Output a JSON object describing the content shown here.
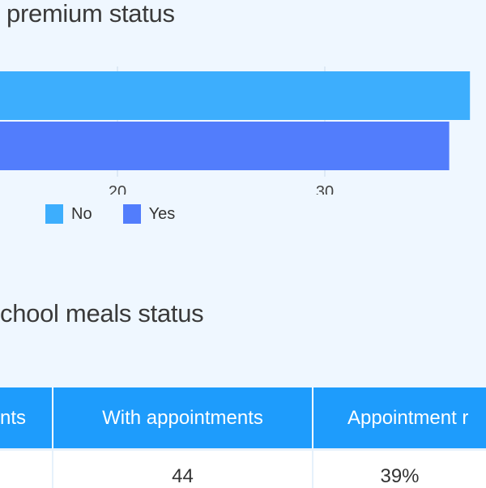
{
  "chart_section": {
    "title": "premium status"
  },
  "chart_data": {
    "type": "bar",
    "orientation": "horizontal",
    "title": "premium status",
    "series": [
      {
        "name": "No",
        "values": [
          37
        ],
        "color": "#3daefd"
      },
      {
        "name": "Yes",
        "values": [
          36
        ],
        "color": "#527dfc"
      }
    ],
    "x_ticks": [
      "20",
      "30"
    ],
    "x_tick_values": [
      20,
      30
    ],
    "grid": true,
    "legend": "bottom-left"
  },
  "table_section": {
    "title": "chool meals status",
    "columns": [
      "nts",
      "With appointments",
      "Appointment r"
    ],
    "rows": [
      [
        "",
        "44",
        "39%"
      ]
    ]
  },
  "colors": {
    "header": "#1e9cfc",
    "background": "#eff7ff"
  }
}
